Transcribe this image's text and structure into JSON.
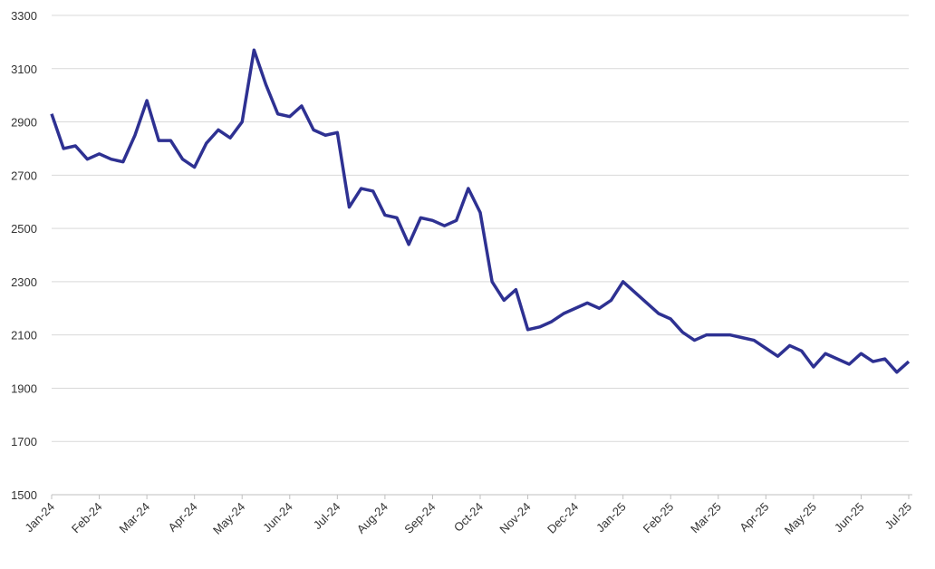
{
  "chart_data": {
    "type": "line",
    "categories": [
      "Jan-24",
      null,
      null,
      null,
      "Feb-24",
      null,
      null,
      null,
      "Mar-24",
      null,
      null,
      null,
      "Apr-24",
      null,
      null,
      null,
      "May-24",
      null,
      null,
      null,
      "Jun-24",
      null,
      null,
      null,
      "Jul-24",
      null,
      null,
      null,
      "Aug-24",
      null,
      null,
      null,
      "Sep-24",
      null,
      null,
      null,
      "Oct-24",
      null,
      null,
      null,
      "Nov-24",
      null,
      null,
      null,
      "Dec-24",
      null,
      null,
      null,
      "Jan-25",
      null,
      null,
      null,
      "Feb-25",
      null,
      null,
      null,
      "Mar-25",
      null,
      null,
      null,
      "Apr-25",
      null,
      null,
      null,
      "May-25",
      null,
      null,
      null,
      "Jun-25",
      null,
      null,
      null,
      "Jul-25"
    ],
    "series": [
      {
        "color": "#2e3192",
        "values": [
          2930,
          2800,
          2810,
          2760,
          2780,
          2760,
          2750,
          2850,
          2980,
          2830,
          2830,
          2760,
          2730,
          2820,
          2870,
          2840,
          2900,
          3170,
          3040,
          2930,
          2920,
          2960,
          2870,
          2850,
          2860,
          2580,
          2650,
          2640,
          2550,
          2540,
          2440,
          2540,
          2530,
          2510,
          2530,
          2650,
          2560,
          2300,
          2230,
          2270,
          2120,
          2130,
          2150,
          2180,
          2200,
          2220,
          2200,
          2230,
          2300,
          2260,
          2220,
          2180,
          2160,
          2110,
          2080,
          2100,
          2100,
          2100,
          2090,
          2080,
          2050,
          2020,
          2060,
          2040,
          1980,
          2030,
          2010,
          1990,
          2030,
          2000,
          2010,
          1960,
          2000
        ]
      }
    ],
    "ylim": [
      1500,
      3300
    ],
    "yticks": [
      1500,
      1700,
      1900,
      2100,
      2300,
      2500,
      2700,
      2900,
      3100,
      3300
    ],
    "grid": true
  }
}
